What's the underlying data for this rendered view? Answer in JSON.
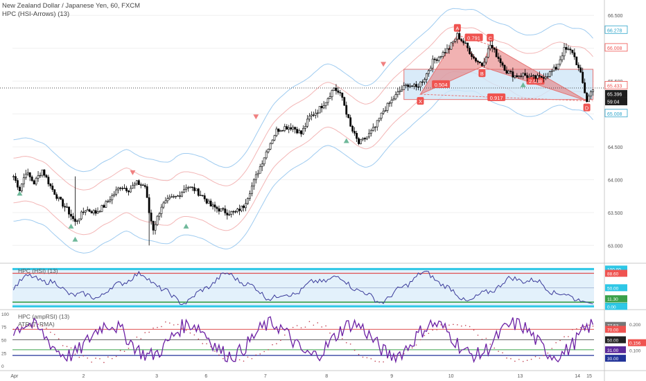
{
  "header": {
    "symbol_line": "New Zealand Dollar / Japanese Yen, 60, FXCM",
    "indicator_line": "HPC (HSI-Arrows) (13)"
  },
  "subpanels": {
    "hsi_label": "HPC (HSI) (13)",
    "amprsi_label": "HPC (ampRSI) (13)",
    "atr_label": "ATR (7, RMA)"
  },
  "colors": {
    "up_candle": "#000000",
    "band_blue": "#9ecbf0",
    "band_red": "#f3b5b5",
    "harmonic_fill": "#e57373",
    "box_fill": "#cfe6f7",
    "osc_line": "#3a3a9a",
    "amp_line": "#6b1fa3",
    "level_cyan": "#2ec7e6",
    "level_red": "#e05050",
    "level_green": "#3aa04a"
  },
  "chart_data": [
    {
      "type": "candlestick",
      "title": "New Zealand Dollar / Japanese Yen, 60, FXCM",
      "x_ticks": [
        "Apr",
        "2",
        "3",
        "6",
        "7",
        "8",
        "9",
        "10",
        "13",
        "14",
        "15"
      ],
      "y_ticks": [
        "66.500",
        "66.000",
        "65.500",
        "65.000",
        "64.500",
        "64.000",
        "63.500",
        "63.000"
      ],
      "ylim": [
        62.75,
        66.65
      ],
      "price_series": [
        [
          0,
          64.05
        ],
        [
          3,
          63.85
        ],
        [
          6,
          64.12
        ],
        [
          10,
          63.95
        ],
        [
          14,
          64.15
        ],
        [
          18,
          63.9
        ],
        [
          22,
          63.7
        ],
        [
          26,
          63.55
        ],
        [
          30,
          63.35
        ],
        [
          35,
          63.55
        ],
        [
          40,
          63.5
        ],
        [
          44,
          63.6
        ],
        [
          48,
          63.75
        ],
        [
          52,
          63.9
        ],
        [
          56,
          63.85
        ],
        [
          60,
          63.95
        ],
        [
          64,
          63.9
        ],
        [
          66,
          63.5
        ],
        [
          68,
          63.25
        ],
        [
          72,
          63.6
        ],
        [
          76,
          63.7
        ],
        [
          80,
          63.75
        ],
        [
          84,
          63.9
        ],
        [
          88,
          63.85
        ],
        [
          92,
          63.75
        ],
        [
          96,
          63.6
        ],
        [
          100,
          63.55
        ],
        [
          104,
          63.5
        ],
        [
          108,
          63.5
        ],
        [
          112,
          63.6
        ],
        [
          116,
          63.9
        ],
        [
          120,
          64.2
        ],
        [
          124,
          64.5
        ],
        [
          128,
          64.75
        ],
        [
          132,
          64.8
        ],
        [
          136,
          64.8
        ],
        [
          140,
          64.7
        ],
        [
          144,
          64.95
        ],
        [
          148,
          65.05
        ],
        [
          152,
          65.2
        ],
        [
          156,
          65.4
        ],
        [
          160,
          65.25
        ],
        [
          164,
          64.8
        ],
        [
          168,
          64.55
        ],
        [
          172,
          64.65
        ],
        [
          176,
          64.8
        ],
        [
          180,
          65.05
        ],
        [
          184,
          65.2
        ],
        [
          188,
          65.35
        ],
        [
          192,
          65.45
        ],
        [
          196,
          65.4
        ],
        [
          200,
          65.55
        ],
        [
          204,
          65.8
        ],
        [
          208,
          65.9
        ],
        [
          212,
          66.0
        ],
        [
          216,
          66.2
        ],
        [
          220,
          66.05
        ],
        [
          224,
          65.85
        ],
        [
          228,
          65.75
        ],
        [
          232,
          66.05
        ],
        [
          236,
          65.85
        ],
        [
          240,
          65.65
        ],
        [
          244,
          65.58
        ],
        [
          248,
          65.6
        ],
        [
          252,
          65.55
        ],
        [
          256,
          65.55
        ],
        [
          260,
          65.6
        ],
        [
          264,
          65.7
        ],
        [
          268,
          65.98
        ],
        [
          272,
          65.95
        ],
        [
          276,
          65.6
        ],
        [
          279,
          65.2
        ],
        [
          282,
          65.4
        ]
      ],
      "current_price": "65.396",
      "countdown": "59:04",
      "price_labels": [
        {
          "text": "66.278",
          "y": 66.278,
          "color": "#2aa3c9"
        },
        {
          "text": "66.008",
          "y": 66.008,
          "color": "#ef5350"
        },
        {
          "text": "65.433",
          "y": 65.433,
          "color": "#ef5350"
        },
        {
          "text": "65.008",
          "y": 65.008,
          "color": "#2aa3c9"
        }
      ],
      "harmonic_points": [
        {
          "label": "X",
          "i": 198,
          "y": 65.3
        },
        {
          "label": "A",
          "i": 216,
          "y": 66.2
        },
        {
          "label": "B",
          "i": 228,
          "y": 65.72
        },
        {
          "label": "C",
          "i": 232,
          "y": 66.05
        },
        {
          "label": "D",
          "i": 279,
          "y": 65.2
        }
      ],
      "harmonic_ratios": [
        {
          "text": "0.791",
          "i": 224,
          "y": 66.16
        },
        {
          "text": "0.504",
          "i": 208,
          "y": 65.45
        },
        {
          "text": "2.038",
          "i": 254,
          "y": 65.5
        },
        {
          "text": "0.917",
          "i": 235,
          "y": 65.25
        }
      ],
      "arrows_down": [
        {
          "i": 58,
          "y": 64.1
        },
        {
          "i": 118,
          "y": 64.95
        },
        {
          "i": 180,
          "y": 65.75
        }
      ],
      "arrows_up": [
        {
          "i": 3,
          "y": 63.8
        },
        {
          "i": 28,
          "y": 63.3
        },
        {
          "i": 30,
          "y": 63.1
        },
        {
          "i": 84,
          "y": 63.3
        },
        {
          "i": 162,
          "y": 64.6
        },
        {
          "i": 248,
          "y": 65.45
        }
      ]
    },
    {
      "type": "line",
      "title": "HPC (HSI) (13)",
      "y_labels": [
        "100.00",
        "88.60",
        "50.00",
        "11.30",
        "6.62",
        "0.00"
      ],
      "levels": {
        "top": 100,
        "red": 88.6,
        "mid": 50,
        "green": 11.3,
        "bottom": 0
      },
      "current": "6.62",
      "ylim": [
        -5,
        110
      ]
    },
    {
      "type": "line",
      "title": "HPC (ampRSI) (13)",
      "y_ticks": [
        "100",
        "75",
        "50",
        "25",
        "0"
      ],
      "right_labels": [
        "77.53",
        "70.00",
        "50.00",
        "31.00",
        "30.00"
      ],
      "atr_labels": [
        "0.200",
        "0.156",
        "0.100"
      ],
      "levels": {
        "red": 70,
        "mid": 50,
        "green": 31,
        "blue": 20
      },
      "ylim": [
        -5,
        105
      ]
    }
  ]
}
